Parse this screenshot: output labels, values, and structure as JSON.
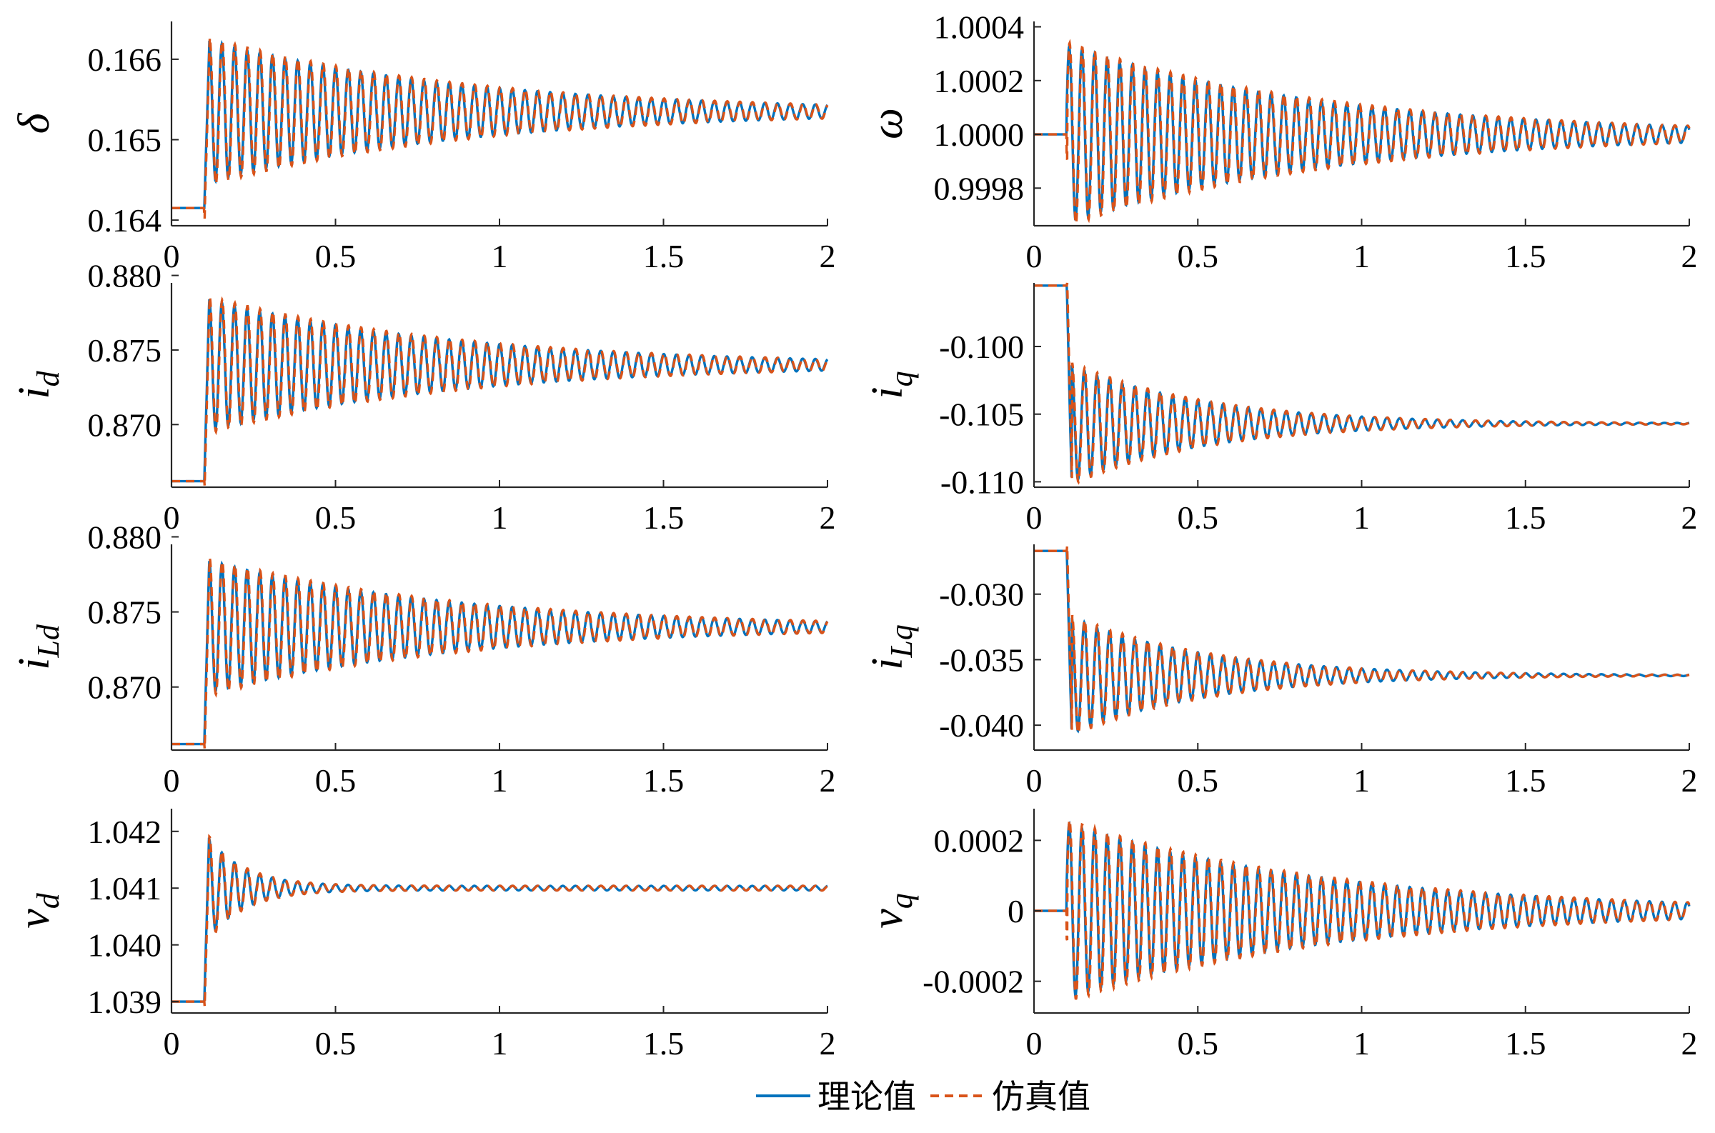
{
  "chart_data": [
    {
      "type": "line",
      "ylabel": "δ",
      "xlim": [
        0,
        2
      ],
      "ylim": [
        0.16393,
        0.16647
      ],
      "xticks": [
        0,
        0.5,
        1,
        1.5,
        2
      ],
      "xtick_labels": [
        "0",
        "0.5",
        "1",
        "1.5",
        "2"
      ],
      "yticks": [
        0.164,
        0.165,
        0.166
      ],
      "ytick_labels": [
        "0.164",
        "0.165",
        "0.166"
      ],
      "response": {
        "initial": 0.16415,
        "t_step": 0.1,
        "dip": -8e-05,
        "final": 0.16535,
        "amplitude": 0.0009,
        "period": 0.0385,
        "decay": 1.25,
        "rise_peak": 0.16615
      }
    },
    {
      "type": "line",
      "ylabel": "ω",
      "xlim": [
        0,
        2
      ],
      "ylim": [
        0.99966,
        1.00042
      ],
      "xticks": [
        0,
        0.5,
        1,
        1.5,
        2
      ],
      "xtick_labels": [
        "0",
        "0.5",
        "1",
        "1.5",
        "2"
      ],
      "yticks": [
        0.9998,
        1.0,
        1.0002,
        1.0004
      ],
      "ytick_labels": [
        "0.9998",
        "1.0000",
        "1.0002",
        "1.0004"
      ],
      "response": {
        "initial": 1.0,
        "t_step": 0.1,
        "dip": -9e-05,
        "final": 1.0,
        "amplitude": 0.00033,
        "period": 0.0385,
        "decay": 1.25,
        "phase": "sin"
      }
    },
    {
      "type": "line",
      "ylabel": "i",
      "ylabel_sub": "d",
      "xlim": [
        0,
        2
      ],
      "ylim": [
        0.8658,
        0.8795
      ],
      "xticks": [
        0,
        0.5,
        1,
        1.5,
        2
      ],
      "xtick_labels": [
        "0",
        "0.5",
        "1",
        "1.5",
        "2"
      ],
      "yticks": [
        0.87,
        0.875,
        0.88
      ],
      "ytick_labels": [
        "0.870",
        "0.875",
        "0.880"
      ],
      "response": {
        "initial": 0.8662,
        "t_step": 0.1,
        "final": 0.874,
        "amplitude": 0.0045,
        "period": 0.0385,
        "decay": 1.3,
        "rise_peak": 0.8784
      }
    },
    {
      "type": "line",
      "ylabel": "i",
      "ylabel_sub": "q",
      "xlim": [
        0,
        2
      ],
      "ylim": [
        -0.1104,
        -0.0953
      ],
      "xticks": [
        0,
        0.5,
        1,
        1.5,
        2
      ],
      "xtick_labels": [
        "0",
        "0.5",
        "1",
        "1.5",
        "2"
      ],
      "yticks": [
        -0.11,
        -0.105,
        -0.1
      ],
      "ytick_labels": [
        "-0.110",
        "-0.105",
        "-0.100"
      ],
      "response": {
        "initial": -0.0955,
        "t_step": 0.1,
        "final": -0.1057,
        "amplitude": 0.0045,
        "period": 0.0385,
        "decay": 2.4,
        "rise_peak": -0.1102
      }
    },
    {
      "type": "line",
      "ylabel": "i",
      "ylabel_sub": "Ld",
      "xlim": [
        0,
        2
      ],
      "ylim": [
        0.8658,
        0.8795
      ],
      "xticks": [
        0,
        0.5,
        1,
        1.5,
        2
      ],
      "xtick_labels": [
        "0",
        "0.5",
        "1",
        "1.5",
        "2"
      ],
      "yticks": [
        0.87,
        0.875,
        0.88
      ],
      "ytick_labels": [
        "0.870",
        "0.875",
        "0.880"
      ],
      "response": {
        "initial": 0.8662,
        "t_step": 0.1,
        "final": 0.874,
        "amplitude": 0.0045,
        "period": 0.0385,
        "decay": 1.3,
        "rise_peak": 0.8784
      }
    },
    {
      "type": "line",
      "ylabel": "i",
      "ylabel_sub": "Lq",
      "xlim": [
        0,
        2
      ],
      "ylim": [
        -0.0419,
        -0.0262
      ],
      "xticks": [
        0,
        0.5,
        1,
        1.5,
        2
      ],
      "xtick_labels": [
        "0",
        "0.5",
        "1",
        "1.5",
        "2"
      ],
      "yticks": [
        -0.04,
        -0.035,
        -0.03
      ],
      "ytick_labels": [
        "-0.040",
        "-0.035",
        "-0.030"
      ],
      "response": {
        "initial": -0.0267,
        "t_step": 0.1,
        "final": -0.0362,
        "amplitude": 0.0046,
        "period": 0.0385,
        "decay": 2.4,
        "rise_peak": -0.0408
      }
    },
    {
      "type": "line",
      "ylabel": "v",
      "ylabel_sub": "d",
      "xlim": [
        0,
        2
      ],
      "ylim": [
        1.0388,
        1.0424
      ],
      "xticks": [
        0,
        0.5,
        1,
        1.5,
        2
      ],
      "xtick_labels": [
        "0",
        "0.5",
        "1",
        "1.5",
        "2"
      ],
      "yticks": [
        1.039,
        1.04,
        1.041,
        1.042
      ],
      "ytick_labels": [
        "1.039",
        "1.040",
        "1.041",
        "1.042"
      ],
      "response": {
        "initial": 1.039,
        "t_step": 0.1,
        "final": 1.041,
        "amplitude": 0.00095,
        "period": 0.0385,
        "decay": 9.0,
        "tail_amplitude": 4e-05,
        "rise_peak": 1.042
      }
    },
    {
      "type": "line",
      "ylabel": "v",
      "ylabel_sub": "q",
      "xlim": [
        0,
        2
      ],
      "ylim": [
        -0.00029,
        0.00029
      ],
      "xticks": [
        0,
        0.5,
        1,
        1.5,
        2
      ],
      "xtick_labels": [
        "0",
        "0.5",
        "1",
        "1.5",
        "2"
      ],
      "yticks": [
        -0.0002,
        0,
        0.0002
      ],
      "ytick_labels": [
        "-0.0002",
        "0",
        "0.0002"
      ],
      "response": {
        "initial": 0,
        "t_step": 0.1,
        "dip": -8e-05,
        "final": 0,
        "amplitude": 0.00025,
        "period": 0.0385,
        "decay": 1.25,
        "phase": "sin"
      }
    }
  ],
  "legend": {
    "position": "bottom-center",
    "entries": [
      {
        "label": "理论值",
        "color": "#0072BD",
        "style": "solid"
      },
      {
        "label": "仿真值",
        "color": "#D95319",
        "style": "dashed"
      }
    ]
  }
}
